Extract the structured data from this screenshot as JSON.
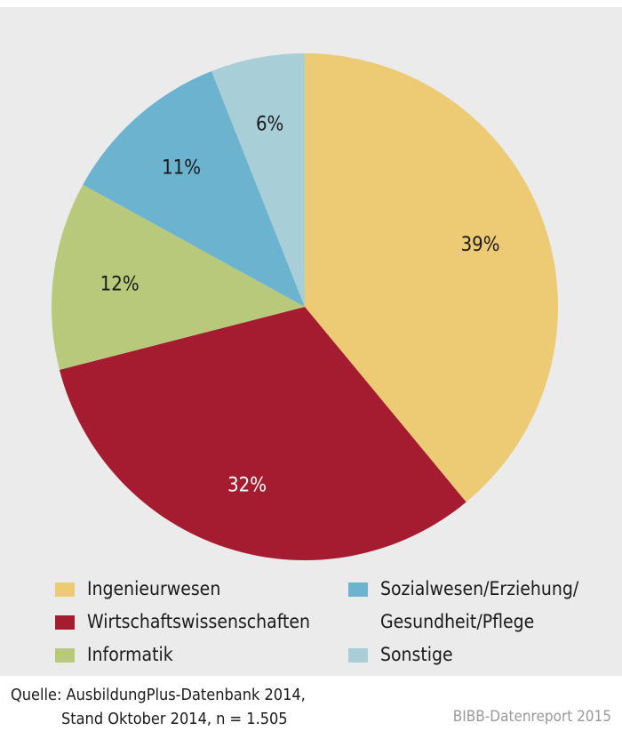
{
  "chart_data": {
    "type": "pie",
    "categories": [
      "Ingenieurwesen",
      "Wirtschaftswissenschaften",
      "Informatik",
      "Sozialwesen/Erziehung/\nGesundheit/Pflege",
      "Sonstige"
    ],
    "values": [
      39,
      32,
      12,
      11,
      6
    ],
    "labels": [
      "39%",
      "32%",
      "12%",
      "11%",
      "6%"
    ],
    "colors": [
      "#eccb74",
      "#a51c30",
      "#b9c97c",
      "#6cb3d0",
      "#a8cfd8"
    ],
    "start": "12 o'clock, clockwise",
    "legend": "bottom"
  },
  "source": {
    "line1": "Quelle: AusbildungPlus-Datenbank 2014,",
    "line2": "Stand Oktober 2014, n = 1.505"
  },
  "credit": "BIBB-Datenreport 2015"
}
